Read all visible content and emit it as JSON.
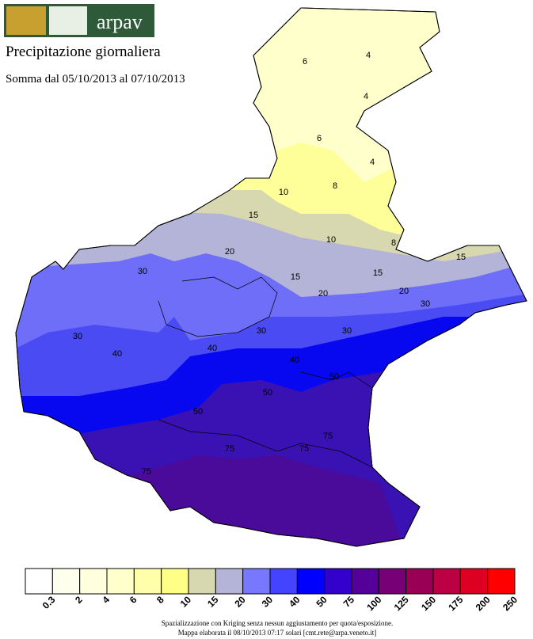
{
  "header": {
    "logo_text": "arpav",
    "title": "Precipitazione giornaliera",
    "subtitle": "Somma dal 05/10/2013 al 07/10/2013"
  },
  "legend": [
    {
      "label": "0.3",
      "color": "#ffffff"
    },
    {
      "label": "2",
      "color": "#ffffee"
    },
    {
      "label": "4",
      "color": "#ffffdd"
    },
    {
      "label": "6",
      "color": "#ffffcc"
    },
    {
      "label": "8",
      "color": "#ffffaa"
    },
    {
      "label": "10",
      "color": "#ffff88"
    },
    {
      "label": "15",
      "color": "#d8d8b0"
    },
    {
      "label": "20",
      "color": "#b4b4d8"
    },
    {
      "label": "30",
      "color": "#7878ff"
    },
    {
      "label": "40",
      "color": "#4444ff"
    },
    {
      "label": "50",
      "color": "#0000ff"
    },
    {
      "label": "75",
      "color": "#3300cc"
    },
    {
      "label": "100",
      "color": "#550099"
    },
    {
      "label": "125",
      "color": "#770077"
    },
    {
      "label": "150",
      "color": "#990055"
    },
    {
      "label": "175",
      "color": "#bb0044"
    },
    {
      "label": "200",
      "color": "#dd0022"
    },
    {
      "label": "250",
      "color": "#ff0000"
    }
  ],
  "contour_labels": [
    "6",
    "4",
    "4",
    "6",
    "4",
    "10",
    "8",
    "8",
    "10",
    "15",
    "20",
    "15",
    "15",
    "15",
    "20",
    "20",
    "30",
    "30",
    "30",
    "30",
    "30",
    "40",
    "40",
    "40",
    "50",
    "50",
    "50",
    "75",
    "75",
    "75",
    "75"
  ],
  "footer": [
    "Spazializzazione con Kriging senza nessun aggiustamento per quota/esposizione.",
    "Mappa elaborata il 08/10/2013 07:17 solari [cmt.rete@arpa.veneto.it]"
  ]
}
